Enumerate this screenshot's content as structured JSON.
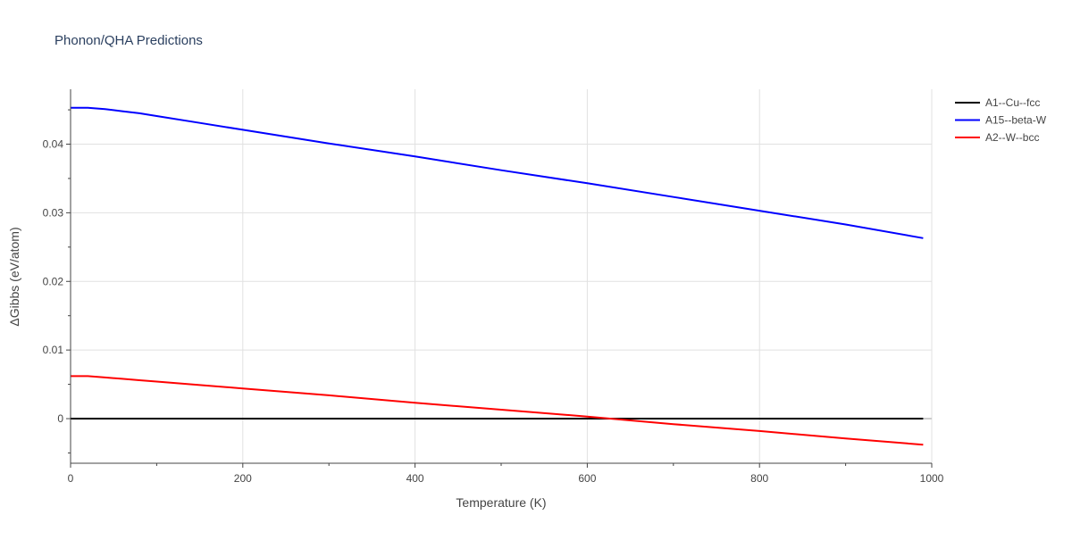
{
  "chart_data": {
    "type": "line",
    "title": "Phonon/QHA Predictions",
    "xlabel": "Temperature (K)",
    "ylabel": "ΔGibbs (eV/atom)",
    "xlim": [
      0,
      1000
    ],
    "ylim": [
      -0.0065,
      0.048
    ],
    "xticks": [
      0,
      200,
      400,
      600,
      800,
      1000
    ],
    "xtick_labels": [
      "0",
      "200",
      "400",
      "600",
      "800",
      "1000"
    ],
    "yticks": [
      0,
      0.01,
      0.02,
      0.03,
      0.04
    ],
    "ytick_labels": [
      "0",
      "0.01",
      "0.02",
      "0.03",
      "0.04"
    ],
    "grid": true,
    "legend_position": "top-right",
    "series": [
      {
        "name": "A1--Cu--fcc",
        "color": "#000000",
        "x": [
          0,
          990
        ],
        "y": [
          0,
          0
        ]
      },
      {
        "name": "A15--beta-W",
        "color": "#0000ff",
        "x": [
          0,
          10,
          20,
          30,
          40,
          60,
          80,
          100,
          150,
          200,
          300,
          400,
          500,
          600,
          700,
          800,
          900,
          990
        ],
        "y": [
          0.0453,
          0.0453,
          0.0453,
          0.0452,
          0.0451,
          0.0448,
          0.0445,
          0.0441,
          0.0431,
          0.0421,
          0.0401,
          0.0382,
          0.0362,
          0.0343,
          0.0323,
          0.0303,
          0.0283,
          0.0263
        ]
      },
      {
        "name": "A2--W--bcc",
        "color": "#ff0000",
        "x": [
          0,
          10,
          20,
          30,
          40,
          60,
          80,
          100,
          150,
          200,
          300,
          400,
          500,
          600,
          700,
          800,
          900,
          990
        ],
        "y": [
          0.0062,
          0.0062,
          0.0062,
          0.0061,
          0.006,
          0.0058,
          0.0056,
          0.0054,
          0.0049,
          0.0044,
          0.0034,
          0.0023,
          0.0013,
          0.0003,
          -0.0008,
          -0.0018,
          -0.0029,
          -0.0038
        ]
      }
    ]
  }
}
